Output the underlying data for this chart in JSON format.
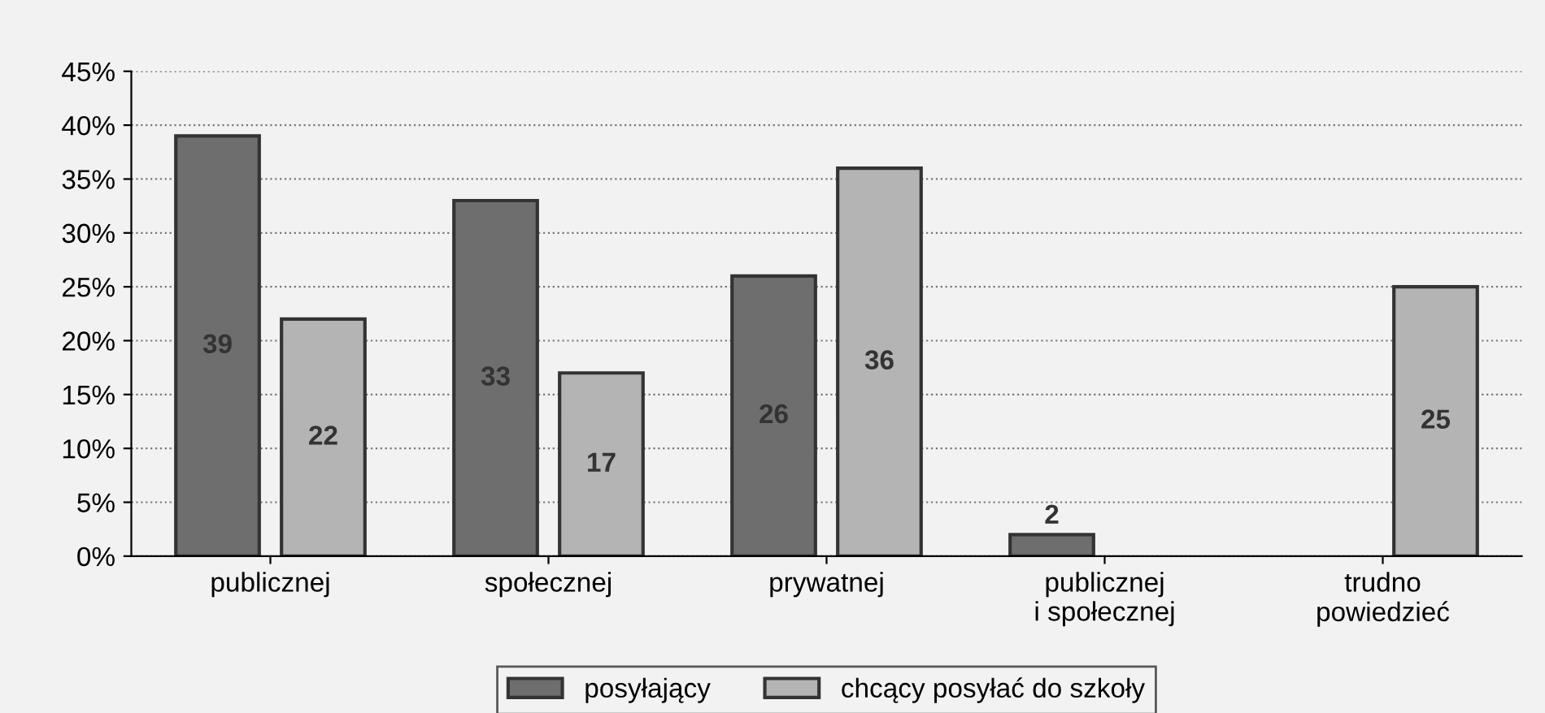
{
  "chart_data": {
    "type": "bar",
    "categories": [
      "publicznej",
      "społecznej",
      "prywatnej",
      "publicznej\ni społecznej",
      "trudno\npowiedzieć"
    ],
    "series": [
      {
        "name": "posyłający",
        "color": "#6e6e6e",
        "values": [
          39,
          33,
          26,
          2,
          null
        ]
      },
      {
        "name": "chcący posyłać do szkoły",
        "color": "#b4b4b4",
        "values": [
          22,
          17,
          36,
          null,
          25
        ]
      }
    ],
    "ylim": [
      0,
      45
    ],
    "yticks": [
      {
        "value": 0,
        "label": "0%"
      },
      {
        "value": 5,
        "label": "5%"
      },
      {
        "value": 10,
        "label": "10%"
      },
      {
        "value": 15,
        "label": "15%"
      },
      {
        "value": 20,
        "label": "20%"
      },
      {
        "value": 25,
        "label": "25%"
      },
      {
        "value": 30,
        "label": "30%"
      },
      {
        "value": 35,
        "label": "35%"
      },
      {
        "value": 40,
        "label": "40%"
      },
      {
        "value": 45,
        "label": "45%"
      }
    ],
    "grid": "y",
    "legend": "bottom",
    "data_labels": true
  }
}
